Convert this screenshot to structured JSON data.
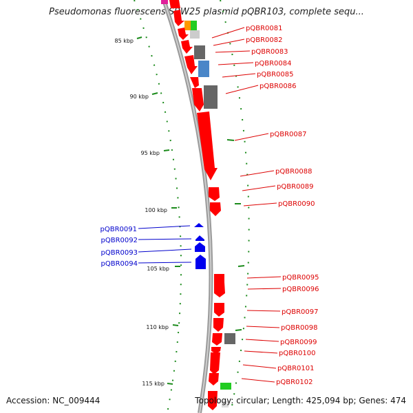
{
  "title": "Pseudomonas fluorescens SBW25 plasmid pQBR103, complete sequ...",
  "axis": {
    "kbp_labels": [
      "85 kbp",
      "90 kbp",
      "95 kbp",
      "100 kbp",
      "105 kbp",
      "110 kbp",
      "115 kbp"
    ]
  },
  "genes_forward": [
    "pQBR0081",
    "pQBR0082",
    "pQBR0083",
    "pQBR0084",
    "pQBR0085",
    "pQBR0086",
    "pQBR0087",
    "pQBR0088",
    "pQBR0089",
    "pQBR0090",
    "pQBR0095",
    "pQBR0096",
    "pQBR0097",
    "pQBR0098",
    "pQBR0099",
    "pQBR0100",
    "pQBR0101",
    "pQBR0102"
  ],
  "genes_reverse": [
    "pQBR0091",
    "pQBR0092",
    "pQBR0093",
    "pQBR0094"
  ],
  "footer": {
    "accession": "Accession: NC_009444",
    "summary": "Topology: circular; Length: 425,094 bp; Genes: 474"
  },
  "colors": {
    "forward_strand": "#ff0000",
    "reverse_strand": "#0000ee",
    "tick_marks": "#1a8a1a",
    "backbone": "#9a9a9a"
  }
}
